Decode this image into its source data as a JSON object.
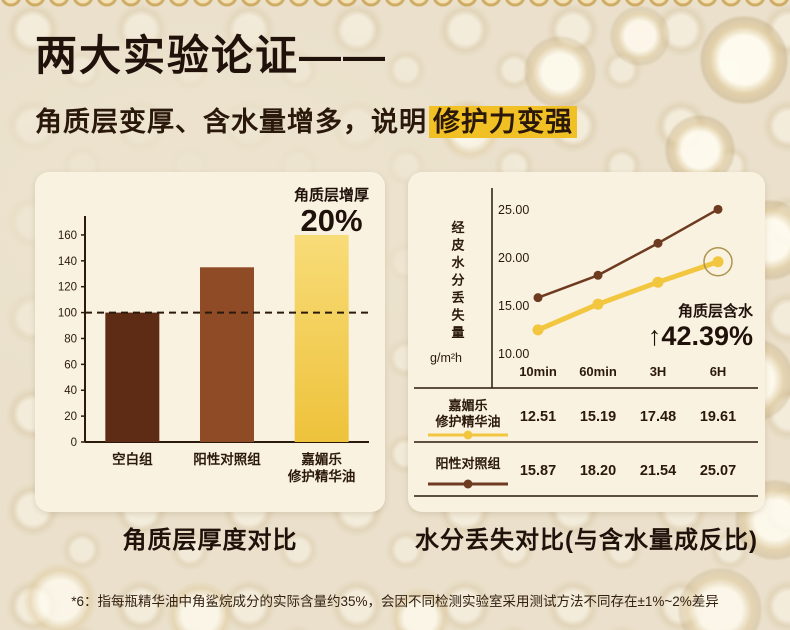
{
  "header": {
    "title": "两大实验论证",
    "title_dash": "——",
    "subtitle_prefix": "角质层变厚、含水量增多，说明",
    "subtitle_highlight": "修护力变强"
  },
  "left_chart": {
    "annotation_label": "角质层增厚",
    "annotation_value": "20%",
    "caption": "角质层厚度对比"
  },
  "right_chart": {
    "annotation_label": "角质层含水",
    "annotation_value": "↑42.39%",
    "caption": "水分丢失对比(与含水量成反比)"
  },
  "footnote": "*6：指每瓶精华油中角鲨烷成分的实际含量约35%，会因不同检测实验室采用测试方法不同存在±1%~2%差异",
  "colors": {
    "text": "#20120A",
    "axis": "#2B1A0C",
    "panel_bg": "#F9F2E1",
    "highlight_bg": "#F1C024",
    "bar_dark_brown": "#5E2C15",
    "bar_mid_brown": "#8E4B26",
    "bar_gold_top": "#F8DC78",
    "bar_gold_bottom": "#EEC23B",
    "line_gold": "#F2C63E",
    "line_brown": "#6E3A20",
    "annotation_ring": "#AE9450"
  },
  "chart_data": [
    {
      "type": "bar",
      "title": "角质层厚度对比",
      "categories": [
        "空白组",
        "阳性对照组",
        "嘉媚乐\n修护精华油"
      ],
      "values": [
        100,
        135,
        160
      ],
      "ylim": [
        0,
        170
      ],
      "yticks": [
        0,
        20,
        40,
        60,
        80,
        100,
        120,
        140,
        160
      ],
      "reference_line": 100,
      "bar_colors": [
        "#5E2C15",
        "#8E4B26",
        "gold-gradient"
      ],
      "annotation": "角质层增厚 20%",
      "xlabel": "",
      "ylabel": "",
      "grid": false
    },
    {
      "type": "line",
      "title": "水分丢失对比(与含水量成反比)",
      "x": [
        "10min",
        "60min",
        "3H",
        "6H"
      ],
      "ylabel": "经皮水分丢失量",
      "ylabel_unit": "g/m²h",
      "ylim": [
        10,
        25
      ],
      "yticks": [
        10,
        15,
        20,
        25
      ],
      "grid": false,
      "legend_position": "table-below",
      "series": [
        {
          "name": "嘉媚乐修护精华油",
          "name_lines": [
            "嘉媚乐",
            "修护精华油"
          ],
          "color": "#F2C63E",
          "values": [
            12.51,
            15.19,
            17.48,
            19.61
          ]
        },
        {
          "name": "阳性对照组",
          "name_lines": [
            "阳性对照组"
          ],
          "color": "#6E3A20",
          "values": [
            15.87,
            18.2,
            21.54,
            25.07
          ]
        }
      ],
      "annotation": "角质层含水 ↑42.39%",
      "annotation_ring_on": "嘉媚乐修护精华油 6H"
    }
  ]
}
